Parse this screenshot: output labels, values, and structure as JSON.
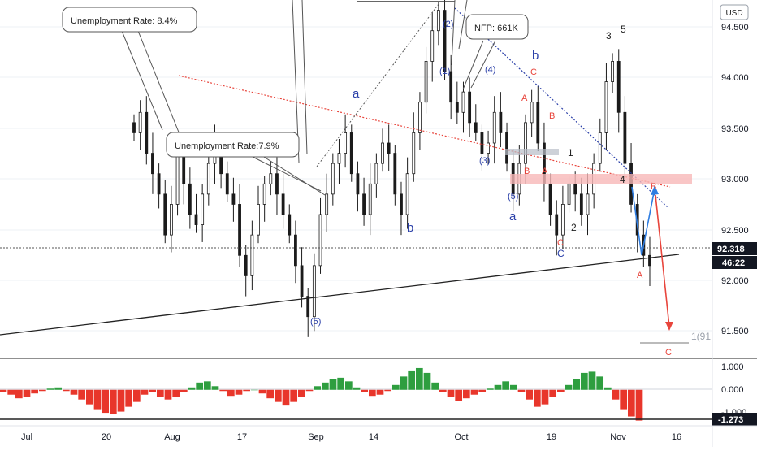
{
  "chart_data": {
    "type": "candlestick",
    "price_axis": {
      "currency": "USD",
      "ticks": [
        "94.500",
        "94.000",
        "93.500",
        "93.000",
        "92.500",
        "92.000",
        "91.500"
      ],
      "ylim": [
        91.4,
        94.9
      ],
      "current_price": "92.318",
      "countdown": "46:22"
    },
    "time_axis": {
      "ticks": [
        "Jul",
        "20",
        "Aug",
        "17",
        "Sep",
        "14",
        "Oct",
        "19",
        "Nov",
        "16"
      ]
    },
    "ohlc_closes": [
      93.6,
      93.8,
      93.4,
      93.2,
      93.0,
      92.6,
      92.9,
      93.4,
      93.1,
      92.8,
      92.7,
      93.0,
      93.3,
      93.5,
      93.2,
      93.0,
      92.9,
      92.4,
      92.2,
      92.6,
      92.9,
      93.1,
      93.2,
      93.0,
      92.8,
      92.6,
      92.3,
      92.0,
      91.8,
      92.3,
      92.8,
      93.0,
      93.3,
      93.4,
      93.6,
      93.2,
      93.0,
      92.8,
      93.1,
      93.3,
      93.5,
      93.4,
      93.0,
      92.8,
      93.2,
      93.6,
      93.9,
      94.3,
      94.6,
      94.8,
      94.2,
      93.9,
      93.8,
      94.0,
      93.7,
      93.6,
      93.4,
      93.5,
      93.8,
      93.6,
      93.3,
      93.0,
      93.3,
      93.7,
      93.9,
      93.5,
      93.1,
      92.8,
      92.6,
      92.9,
      93.1,
      93.0,
      92.8,
      93.0,
      93.3,
      93.6,
      94.1,
      94.3,
      93.8,
      93.3,
      92.9,
      92.6,
      92.4,
      92.3
    ],
    "annotations": {
      "callouts": [
        "Unemployment Rate: 8.4%",
        "Unemployment Rate:7.9%",
        "NFP: 661K"
      ],
      "blue_labels": [
        "a",
        "b",
        "(1)",
        "(2)",
        "(3)",
        "(4)",
        "(5)",
        "(5)",
        "b",
        "a",
        "C",
        "(5)"
      ],
      "red_labels": [
        "A",
        "C",
        "B",
        "B",
        "A",
        "C",
        "B",
        "A",
        "C"
      ],
      "black_labels": [
        "1",
        "2",
        "3",
        "4",
        "5"
      ],
      "fib_label": "1(91."
    },
    "oscillator": {
      "ticks": [
        "1.000",
        "0.000",
        "-1.000"
      ],
      "ylim": [
        -1.35,
        1.2
      ],
      "current_value": "-1.273",
      "values": [
        -0.1,
        -0.2,
        -0.35,
        -0.3,
        -0.15,
        -0.05,
        0.05,
        0.1,
        -0.05,
        -0.2,
        -0.4,
        -0.6,
        -0.8,
        -0.95,
        -1.0,
        -0.9,
        -0.7,
        -0.5,
        -0.2,
        -0.1,
        -0.3,
        -0.4,
        -0.3,
        -0.1,
        0.1,
        0.3,
        0.35,
        0.15,
        -0.05,
        -0.25,
        -0.2,
        -0.05,
        0.0,
        -0.15,
        -0.35,
        -0.5,
        -0.65,
        -0.5,
        -0.3,
        -0.05,
        0.15,
        0.3,
        0.45,
        0.5,
        0.35,
        0.1,
        -0.1,
        -0.25,
        -0.2,
        -0.05,
        0.2,
        0.55,
        0.8,
        0.9,
        0.7,
        0.3,
        -0.1,
        -0.3,
        -0.45,
        -0.35,
        -0.2,
        -0.1,
        0.05,
        0.2,
        0.35,
        0.2,
        -0.1,
        -0.4,
        -0.7,
        -0.6,
        -0.3,
        -0.1,
        0.2,
        0.45,
        0.7,
        0.75,
        0.55,
        0.1,
        -0.4,
        -0.8,
        -1.1,
        -1.27
      ]
    }
  }
}
